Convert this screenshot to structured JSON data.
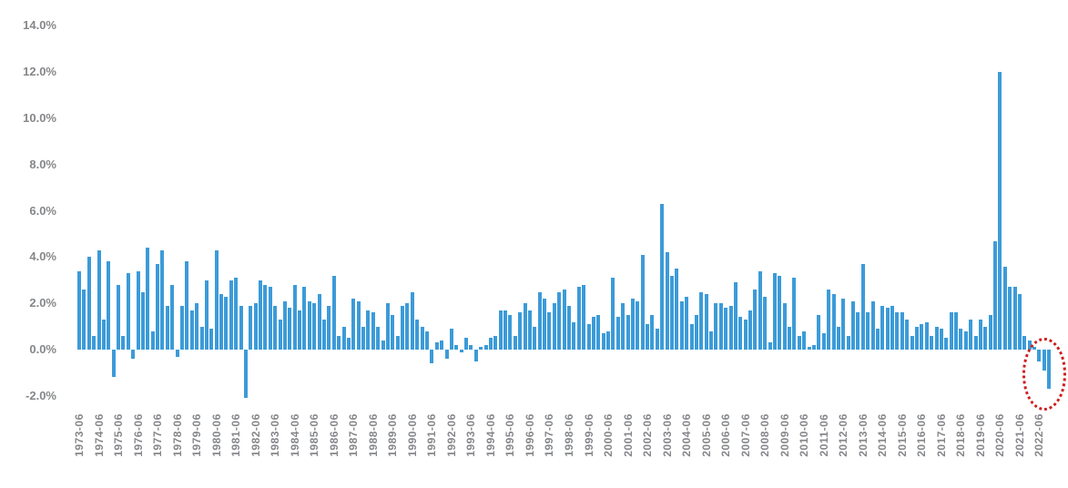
{
  "chart_data": {
    "type": "bar",
    "title": "",
    "xlabel": "",
    "ylabel": "",
    "frequency": "quarterly",
    "bar_color": "#3c9bd8",
    "tick_label_color": "#85878a",
    "grid": false,
    "legend": false,
    "ylim": [
      -2.4,
      14.6
    ],
    "y_axis": {
      "tick_labels": [
        "14.0%",
        "12.0%",
        "10.0%",
        "8.0%",
        "6.0%",
        "4.0%",
        "2.0%",
        "0.0%",
        "-2.0%"
      ],
      "tick_values": [
        14,
        12,
        10,
        8,
        6,
        4,
        2,
        0,
        -2
      ]
    },
    "x_axis": {
      "note": "bars are quarterly; every 4th bar (June quarter) is labeled",
      "labels_every_n_bars": 4,
      "tick_labels": [
        "1973-06",
        "1974-06",
        "1975-06",
        "1976-06",
        "1977-06",
        "1978-06",
        "1979-06",
        "1980-06",
        "1981-06",
        "1982-06",
        "1983-06",
        "1984-06",
        "1985-06",
        "1986-06",
        "1987-06",
        "1988-06",
        "1989-06",
        "1990-06",
        "1991-06",
        "1992-06",
        "1993-06",
        "1994-06",
        "1995-06",
        "1996-06",
        "1997-06",
        "1998-06",
        "1999-06",
        "2000-06",
        "2001-06",
        "2002-06",
        "2003-06",
        "2004-06",
        "2005-06",
        "2006-06",
        "2007-06",
        "2008-06",
        "2009-06",
        "2010-06",
        "2011-06",
        "2012-06",
        "2013-06",
        "2014-06",
        "2015-06",
        "2016-06",
        "2017-06",
        "2018-06",
        "2019-06",
        "2020-06",
        "2021-06",
        "2022-06"
      ]
    },
    "values": [
      3.4,
      2.6,
      4.0,
      0.6,
      4.3,
      1.3,
      3.8,
      -1.2,
      2.8,
      0.6,
      3.3,
      -0.4,
      3.4,
      2.5,
      4.4,
      0.8,
      3.7,
      4.3,
      1.9,
      2.8,
      -0.3,
      1.9,
      3.8,
      1.7,
      2.0,
      1.0,
      3.0,
      0.9,
      4.3,
      2.4,
      2.3,
      3.0,
      3.1,
      1.9,
      -2.1,
      1.9,
      2.0,
      3.0,
      2.8,
      2.7,
      1.9,
      1.3,
      2.1,
      1.8,
      2.8,
      1.7,
      2.7,
      2.1,
      2.0,
      2.4,
      1.3,
      1.9,
      3.2,
      0.6,
      1.0,
      0.5,
      2.2,
      2.1,
      1.0,
      1.7,
      1.6,
      1.0,
      0.4,
      2.0,
      1.5,
      0.6,
      1.9,
      2.0,
      2.5,
      1.3,
      1.0,
      0.8,
      -0.6,
      0.3,
      0.4,
      -0.4,
      0.9,
      0.2,
      -0.1,
      0.5,
      0.2,
      -0.5,
      0.1,
      0.2,
      0.5,
      0.6,
      1.7,
      1.7,
      1.5,
      0.6,
      1.6,
      2.0,
      1.7,
      1.0,
      2.5,
      2.2,
      1.6,
      2.0,
      2.5,
      2.6,
      1.9,
      1.2,
      2.7,
      2.8,
      1.1,
      1.4,
      1.5,
      0.7,
      0.8,
      3.1,
      1.4,
      2.0,
      1.5,
      2.2,
      2.1,
      4.1,
      1.1,
      1.5,
      0.9,
      6.3,
      4.2,
      3.2,
      3.5,
      2.1,
      2.3,
      1.1,
      1.5,
      2.5,
      2.4,
      0.8,
      2.0,
      2.0,
      1.8,
      1.9,
      2.9,
      1.4,
      1.3,
      1.7,
      2.6,
      3.4,
      2.3,
      0.3,
      3.3,
      3.2,
      2.0,
      1.0,
      3.1,
      0.6,
      0.8,
      0.1,
      0.2,
      1.5,
      0.7,
      2.6,
      2.4,
      1.0,
      2.2,
      0.6,
      2.1,
      1.6,
      3.7,
      1.6,
      2.1,
      0.9,
      1.9,
      1.8,
      1.9,
      1.6,
      1.6,
      1.3,
      0.6,
      1.0,
      1.1,
      1.2,
      0.6,
      1.0,
      0.9,
      0.5,
      1.6,
      1.6,
      0.9,
      0.8,
      1.3,
      0.6,
      1.3,
      1.0,
      1.5,
      4.7,
      12.0,
      3.6,
      2.7,
      2.7,
      2.4,
      0.6,
      0.4,
      0.1,
      -0.5,
      -0.9,
      -1.7
    ],
    "annotation": {
      "type": "dotted-ellipse",
      "color": "#cf1d1d",
      "circled_bars": "last three bars (negative values)",
      "circled_values": [
        -0.5,
        -0.9,
        -1.7
      ]
    }
  }
}
